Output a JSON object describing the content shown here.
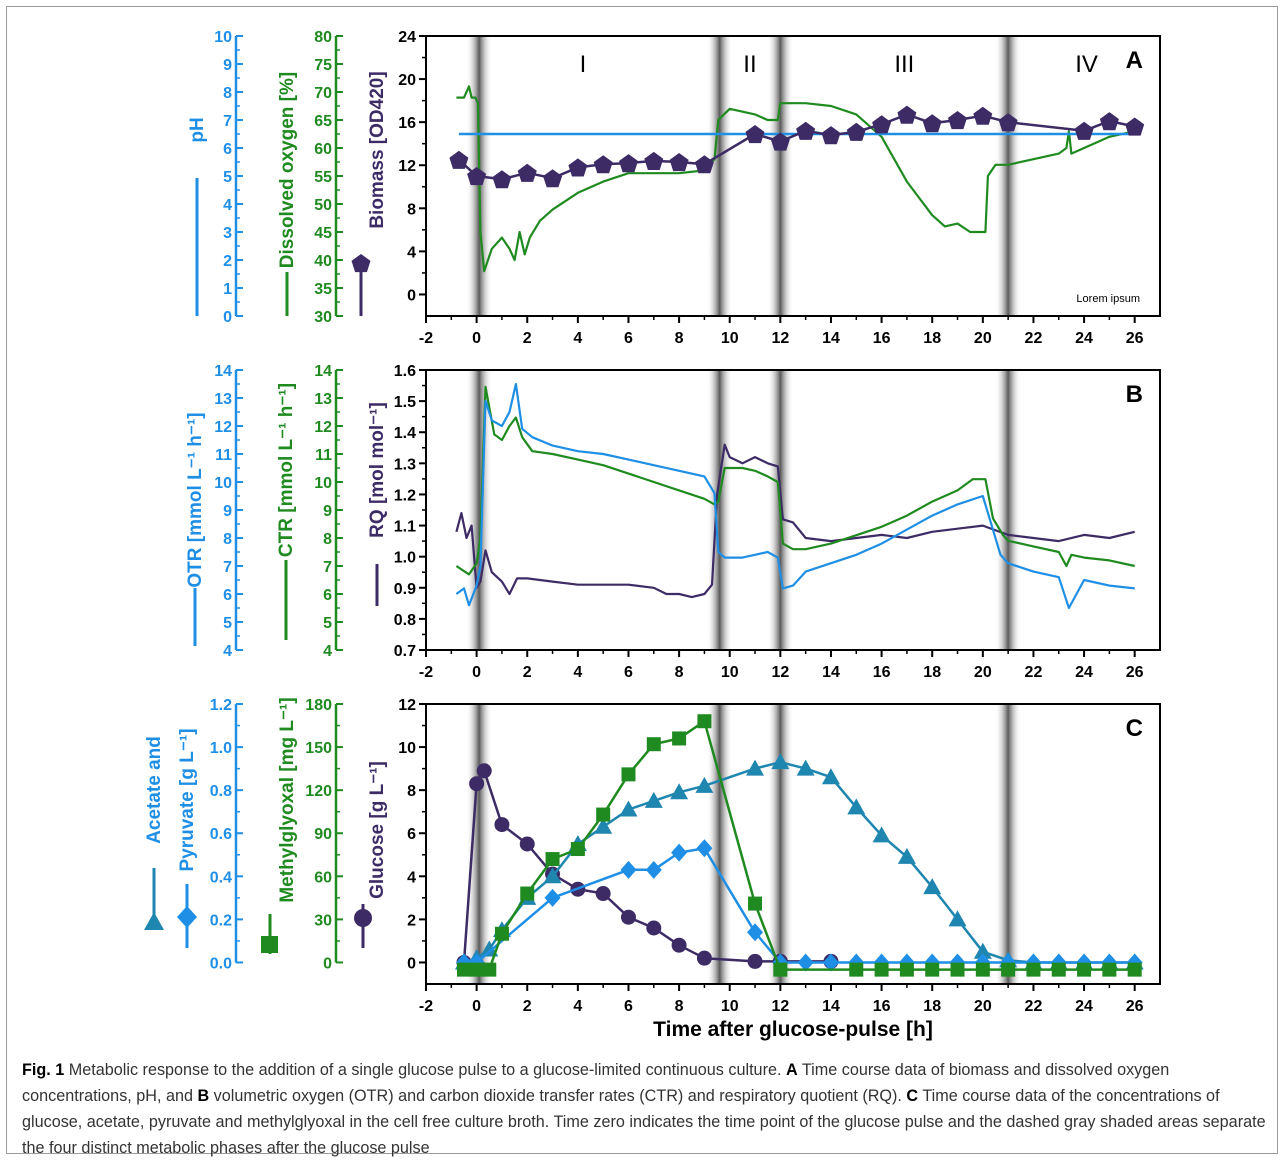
{
  "colors": {
    "blue": "#1f8fe6",
    "green": "#1f8a1f",
    "purple": "#3d2b66",
    "teal": "#1f86b0",
    "axis": "#000000"
  },
  "xaxis": {
    "label": "Time after glucose-pulse [h]",
    "ticks": [
      "-2",
      "0",
      "2",
      "4",
      "6",
      "8",
      "10",
      "12",
      "14",
      "16",
      "18",
      "20",
      "22",
      "24",
      "26"
    ],
    "range": [
      -2,
      27
    ],
    "shaded_phase_boundaries_h": [
      0.1,
      9.6,
      12.0,
      21.0
    ]
  },
  "panelA": {
    "letter": "A",
    "phases": [
      "I",
      "II",
      "III",
      "IV"
    ],
    "note": "Lorem ipsum",
    "axes": [
      {
        "label": "pH",
        "color": "#1f8fe6",
        "ticks": [
          "0",
          "1",
          "2",
          "3",
          "4",
          "5",
          "6",
          "7",
          "8",
          "9",
          "10"
        ],
        "range": [
          0,
          10
        ]
      },
      {
        "label": "Dissolved oxygen [%]",
        "color": "#1f8a1f",
        "ticks": [
          "30",
          "35",
          "40",
          "45",
          "50",
          "55",
          "60",
          "65",
          "70",
          "75",
          "80"
        ],
        "range": [
          30,
          80
        ]
      },
      {
        "label": "Biomass [OD420]",
        "color": "#3d2b66",
        "ticks": [
          "0",
          "4",
          "8",
          "12",
          "16",
          "20",
          "24"
        ],
        "range": [
          -2,
          24
        ]
      }
    ]
  },
  "panelB": {
    "letter": "B",
    "axes": [
      {
        "label": "OTR [mmol L⁻¹ h⁻¹]",
        "color": "#1f8fe6",
        "ticks": [
          "4",
          "5",
          "6",
          "7",
          "8",
          "9",
          "10",
          "11",
          "12",
          "13",
          "14"
        ],
        "range": [
          4,
          14
        ]
      },
      {
        "label": "CTR [mmol L⁻¹ h⁻¹]",
        "color": "#1f8a1f",
        "ticks": [
          "4",
          "5",
          "6",
          "7",
          "8",
          "9",
          "10",
          "11",
          "12",
          "13",
          "14"
        ],
        "range": [
          4,
          14
        ]
      },
      {
        "label": "RQ [mol mol⁻¹]",
        "color": "#3d2b66",
        "ticks": [
          "0.7",
          "0.8",
          "0.9",
          "1.0",
          "1.1",
          "1.2",
          "1.3",
          "1.4",
          "1.5",
          "1.6"
        ],
        "range": [
          0.7,
          1.6
        ]
      }
    ]
  },
  "panelC": {
    "letter": "C",
    "axes": [
      {
        "label1": "Acetate and",
        "label2": "Pyruvate [g L⁻¹]",
        "color": "#1f8fe6",
        "ticks": [
          "0.0",
          "0.2",
          "0.4",
          "0.6",
          "0.8",
          "1.0",
          "1.2"
        ],
        "range": [
          -0.1,
          1.2
        ]
      },
      {
        "label": "Methylglyoxal [mg L⁻¹]",
        "color": "#1f8a1f",
        "ticks": [
          "0",
          "30",
          "60",
          "90",
          "120",
          "150",
          "180"
        ],
        "range": [
          -15,
          180
        ]
      },
      {
        "label": "Glucose [g L⁻¹]",
        "color": "#3d2b66",
        "ticks": [
          "0",
          "2",
          "4",
          "6",
          "8",
          "10",
          "12"
        ],
        "range": [
          -1,
          12
        ]
      }
    ]
  },
  "chart_data": [
    {
      "type": "line",
      "panel": "A",
      "series": [
        {
          "name": "Biomass",
          "unit": "OD420",
          "marker": "pentagon",
          "x": [
            -0.7,
            0,
            1,
            2,
            3,
            4,
            5,
            6,
            7,
            8,
            9,
            11,
            12,
            13,
            14,
            15,
            16,
            17,
            18,
            19,
            20,
            21,
            24,
            25,
            26
          ],
          "y": [
            12.5,
            11.0,
            10.7,
            11.3,
            10.8,
            11.8,
            12.1,
            12.2,
            12.4,
            12.3,
            12.1,
            14.9,
            14.2,
            15.2,
            14.8,
            15.1,
            15.8,
            16.7,
            15.9,
            16.2,
            16.6,
            16.0,
            15.2,
            16.1,
            15.6
          ]
        },
        {
          "name": "pH",
          "x": [
            -0.7,
            26
          ],
          "y": [
            6.5,
            6.5
          ]
        },
        {
          "name": "Dissolved oxygen",
          "unit": "%",
          "x": [
            -0.8,
            -0.5,
            -0.3,
            -0.2,
            -0.05,
            0.05,
            0.15,
            0.3,
            0.6,
            1.0,
            1.3,
            1.5,
            1.7,
            1.9,
            2.1,
            2.5,
            3.0,
            4,
            5,
            6,
            7,
            8,
            9,
            9.4,
            9.55,
            10,
            11,
            11.5,
            11.9,
            12.0,
            13,
            14,
            15,
            16,
            17,
            18,
            18.5,
            19,
            19.5,
            19.8,
            20.1,
            20.2,
            20.5,
            21,
            22,
            23,
            23.3,
            23.4,
            23.5,
            24,
            25,
            26
          ],
          "y": [
            69,
            69,
            71,
            69,
            69,
            68,
            45,
            38,
            42,
            44,
            42,
            40,
            45,
            41,
            44,
            47,
            49,
            52,
            54,
            55.5,
            55.5,
            55.5,
            56,
            58,
            65,
            67,
            66,
            65,
            65,
            68,
            68,
            67.5,
            66,
            62,
            54,
            48,
            46,
            46.5,
            45,
            45,
            45,
            55,
            57,
            57,
            58,
            59,
            60,
            63,
            59,
            60,
            62,
            63
          ]
        }
      ]
    },
    {
      "type": "line",
      "panel": "B",
      "series": [
        {
          "name": "OTR",
          "unit": "mmol L-1 h-1",
          "x": [
            -0.8,
            -0.5,
            -0.3,
            0,
            0.15,
            0.35,
            0.6,
            1.0,
            1.3,
            1.55,
            1.8,
            2.2,
            3,
            4,
            5,
            6,
            7,
            8,
            9,
            9.4,
            9.55,
            9.8,
            10.5,
            11,
            11.5,
            11.9,
            12.1,
            12.5,
            13,
            14,
            15,
            16,
            17,
            18,
            19,
            20,
            20.3,
            20.7,
            21,
            22,
            23,
            23.4,
            24,
            25,
            26
          ],
          "y": [
            6.0,
            6.2,
            5.6,
            6.3,
            7.0,
            12.9,
            12.2,
            12.0,
            12.5,
            13.5,
            11.9,
            11.6,
            11.3,
            11.1,
            11.0,
            10.8,
            10.6,
            10.4,
            10.2,
            9.6,
            7.5,
            7.3,
            7.3,
            7.4,
            7.5,
            7.3,
            6.2,
            6.3,
            6.8,
            7.1,
            7.4,
            7.8,
            8.3,
            8.8,
            9.2,
            9.5,
            8.6,
            7.4,
            7.1,
            6.8,
            6.6,
            5.5,
            6.5,
            6.3,
            6.2
          ]
        },
        {
          "name": "CTR",
          "unit": "mmol L-1 h-1",
          "x": [
            -0.8,
            -0.3,
            0,
            0.15,
            0.35,
            0.7,
            1.0,
            1.3,
            1.55,
            1.8,
            2.2,
            3,
            4,
            5,
            6,
            7,
            8,
            9,
            9.4,
            9.55,
            9.8,
            10.5,
            11,
            11.5,
            11.9,
            12.1,
            12.5,
            13,
            14,
            15,
            16,
            17,
            18,
            19,
            19.6,
            20.1,
            20.4,
            20.8,
            21,
            22,
            23,
            23.3,
            23.5,
            24,
            25,
            26
          ],
          "y": [
            7.0,
            6.7,
            7.1,
            8.0,
            13.4,
            11.7,
            11.5,
            12.0,
            12.3,
            11.6,
            11.1,
            11.0,
            10.8,
            10.6,
            10.3,
            10.0,
            9.7,
            9.4,
            9.2,
            9.3,
            10.5,
            10.5,
            10.4,
            10.2,
            10.0,
            7.8,
            7.6,
            7.6,
            7.8,
            8.1,
            8.4,
            8.8,
            9.3,
            9.7,
            10.1,
            10.1,
            8.7,
            8.1,
            7.9,
            7.7,
            7.5,
            7.0,
            7.4,
            7.3,
            7.2,
            7.0
          ]
        },
        {
          "name": "RQ",
          "unit": "mol mol-1",
          "x": [
            -0.8,
            -0.6,
            -0.4,
            -0.2,
            0,
            0.15,
            0.35,
            0.6,
            1.0,
            1.3,
            1.6,
            2,
            3,
            4,
            5,
            6,
            7,
            7.5,
            8,
            8.5,
            9,
            9.3,
            9.5,
            9.8,
            10,
            10.5,
            11,
            11.5,
            11.9,
            12.1,
            12.5,
            13,
            14,
            15,
            16,
            17,
            18,
            19,
            20,
            21,
            22,
            23,
            24,
            25,
            26
          ],
          "y": [
            1.08,
            1.14,
            1.06,
            1.1,
            0.9,
            0.92,
            1.02,
            0.95,
            0.92,
            0.88,
            0.93,
            0.93,
            0.92,
            0.91,
            0.91,
            0.91,
            0.9,
            0.88,
            0.88,
            0.87,
            0.88,
            0.91,
            1.2,
            1.36,
            1.32,
            1.3,
            1.32,
            1.3,
            1.29,
            1.12,
            1.11,
            1.06,
            1.05,
            1.06,
            1.07,
            1.06,
            1.08,
            1.09,
            1.1,
            1.07,
            1.06,
            1.05,
            1.07,
            1.06,
            1.08
          ]
        }
      ]
    },
    {
      "type": "line",
      "panel": "C",
      "series": [
        {
          "name": "Glucose",
          "unit": "g L-1",
          "marker": "circle",
          "x": [
            -0.5,
            0,
            0.3,
            1,
            2,
            3,
            4,
            5,
            6,
            7,
            8,
            9,
            11,
            12,
            14
          ],
          "y": [
            0,
            8.3,
            8.9,
            6.4,
            5.5,
            4.1,
            3.4,
            3.2,
            2.1,
            1.6,
            0.8,
            0.2,
            0.05,
            0.05,
            0.05
          ]
        },
        {
          "name": "Acetate",
          "unit": "g L-1",
          "marker": "triangle",
          "x": [
            -0.5,
            0,
            0.5,
            1,
            2,
            3,
            4,
            5,
            6,
            7,
            8,
            9,
            11,
            12,
            13,
            14,
            15,
            16,
            17,
            18,
            19,
            20,
            21,
            22,
            23,
            24,
            25,
            26
          ],
          "y": [
            0,
            0.02,
            0.06,
            0.15,
            0.3,
            0.4,
            0.55,
            0.63,
            0.71,
            0.75,
            0.79,
            0.82,
            0.9,
            0.93,
            0.9,
            0.86,
            0.72,
            0.59,
            0.49,
            0.35,
            0.2,
            0.05,
            0.01,
            0,
            0,
            0,
            0,
            0
          ]
        },
        {
          "name": "Pyruvate",
          "unit": "g L-1",
          "marker": "diamond",
          "x": [
            -0.5,
            0,
            3,
            6,
            7,
            8,
            9,
            11,
            12,
            13,
            14,
            15,
            16,
            17,
            18,
            19,
            20,
            21,
            22,
            23,
            24,
            25,
            26
          ],
          "y": [
            0,
            0,
            0.3,
            0.43,
            0.43,
            0.51,
            0.53,
            0.14,
            0,
            0,
            0,
            0,
            0,
            0,
            0,
            0,
            0,
            0,
            0,
            0,
            0,
            0,
            0
          ]
        },
        {
          "name": "Methylglyoxal",
          "unit": "mg L-1",
          "marker": "square",
          "x": [
            -0.5,
            0,
            0.5,
            1,
            2,
            3,
            4,
            5,
            6,
            7,
            8,
            9,
            11,
            12,
            15,
            16,
            17,
            18,
            19,
            20,
            21,
            22,
            23,
            24,
            25,
            26
          ],
          "y": [
            -5,
            -5,
            -5,
            20,
            48,
            72,
            79,
            103,
            131,
            152,
            156,
            168,
            41,
            -5,
            -5,
            -5,
            -5,
            -5,
            -5,
            -5,
            -5,
            -5,
            -5,
            -5,
            -5,
            -5
          ]
        }
      ]
    }
  ],
  "caption": {
    "lead": "Fig. 1",
    "seg1": "  Metabolic response to the addition of a single glucose pulse to a glucose-limited continuous culture. ",
    "a": "A",
    "seg2": " Time course data of biomass and dissolved oxygen concentrations, pH, and ",
    "b": "B",
    "seg3": " volumetric oxygen (OTR) and carbon dioxide transfer rates (CTR) and respiratory quotient (RQ). ",
    "c": "C",
    "seg4": " Time course data of the concentrations of glucose, acetate, pyruvate and methylglyoxal in the cell free culture broth. Time zero indicates the time point of the glucose pulse and the dashed gray shaded areas separate the four distinct metabolic phases after the glucose pulse"
  }
}
